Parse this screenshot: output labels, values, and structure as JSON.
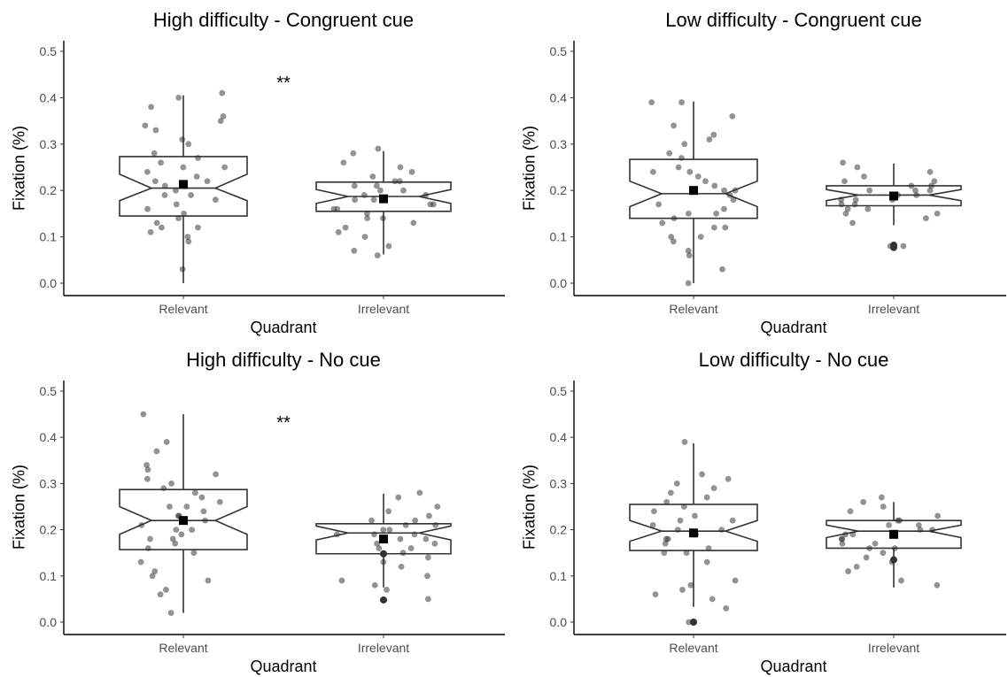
{
  "chart_data": [
    {
      "type": "boxplot",
      "title": "High difficulty - Congruent cue",
      "xlabel": "Quadrant",
      "ylabel": "Fixation (%)",
      "ylim": [
        0,
        0.5
      ],
      "yticks": [
        "0.0",
        "0.1",
        "0.2",
        "0.3",
        "0.4",
        "0.5"
      ],
      "categories": [
        "Relevant",
        "Irrelevant"
      ],
      "annotation": "**",
      "boxes": [
        {
          "category": "Relevant",
          "whisker_low": 0.0,
          "q1": 0.145,
          "median": 0.205,
          "q3": 0.273,
          "whisker_high": 0.405,
          "notch_low": 0.178,
          "notch_high": 0.235,
          "mean": 0.213
        },
        {
          "category": "Irrelevant",
          "whisker_low": 0.062,
          "q1": 0.155,
          "median": 0.187,
          "q3": 0.218,
          "whisker_high": 0.285,
          "notch_low": 0.172,
          "notch_high": 0.202,
          "mean": 0.182
        }
      ],
      "points": [
        [
          0.03,
          0.09,
          0.11,
          0.12,
          0.14,
          0.15,
          0.16,
          0.18,
          0.19,
          0.2,
          0.21,
          0.22,
          0.23,
          0.24,
          0.25,
          0.26,
          0.27,
          0.28,
          0.3,
          0.31,
          0.33,
          0.34,
          0.35,
          0.36,
          0.38,
          0.4,
          0.41,
          0.13,
          0.17,
          0.1,
          0.12,
          0.19,
          0.22,
          0.25
        ],
        [
          0.06,
          0.07,
          0.08,
          0.1,
          0.12,
          0.13,
          0.14,
          0.15,
          0.16,
          0.17,
          0.18,
          0.19,
          0.2,
          0.21,
          0.22,
          0.23,
          0.24,
          0.25,
          0.26,
          0.28,
          0.29,
          0.11,
          0.16,
          0.18,
          0.2,
          0.22,
          0.17,
          0.19,
          0.21,
          0.14
        ]
      ],
      "outliers": [
        [],
        []
      ]
    },
    {
      "type": "boxplot",
      "title": "Low difficulty - Congruent cue",
      "xlabel": "Quadrant",
      "ylabel": "Fixation (%)",
      "ylim": [
        0,
        0.5
      ],
      "yticks": [
        "0.0",
        "0.1",
        "0.2",
        "0.3",
        "0.4",
        "0.5"
      ],
      "categories": [
        "Relevant",
        "Irrelevant"
      ],
      "annotation": "",
      "boxes": [
        {
          "category": "Relevant",
          "whisker_low": 0.0,
          "q1": 0.14,
          "median": 0.193,
          "q3": 0.267,
          "whisker_high": 0.392,
          "notch_low": 0.165,
          "notch_high": 0.22,
          "mean": 0.2
        },
        {
          "category": "Irrelevant",
          "whisker_low": 0.125,
          "q1": 0.167,
          "median": 0.19,
          "q3": 0.21,
          "whisker_high": 0.258,
          "notch_low": 0.178,
          "notch_high": 0.202,
          "mean": 0.188
        }
      ],
      "points": [
        [
          0.0,
          0.03,
          0.06,
          0.07,
          0.09,
          0.1,
          0.12,
          0.13,
          0.14,
          0.15,
          0.16,
          0.18,
          0.19,
          0.2,
          0.21,
          0.22,
          0.23,
          0.24,
          0.25,
          0.27,
          0.28,
          0.3,
          0.31,
          0.32,
          0.34,
          0.36,
          0.39,
          0.39,
          0.1,
          0.15,
          0.17,
          0.2,
          0.24,
          0.12
        ],
        [
          0.08,
          0.08,
          0.13,
          0.14,
          0.15,
          0.16,
          0.17,
          0.18,
          0.19,
          0.2,
          0.21,
          0.22,
          0.23,
          0.24,
          0.25,
          0.26,
          0.16,
          0.18,
          0.19,
          0.2,
          0.21,
          0.17,
          0.19,
          0.22,
          0.2,
          0.18,
          0.15
        ]
      ],
      "outliers": [
        [],
        [
          0.077,
          0.082
        ]
      ]
    },
    {
      "type": "boxplot",
      "title": "High difficulty - No cue",
      "xlabel": "Quadrant",
      "ylabel": "Fixation (%)",
      "ylim": [
        0,
        0.5
      ],
      "yticks": [
        "0.0",
        "0.1",
        "0.2",
        "0.3",
        "0.4",
        "0.5"
      ],
      "categories": [
        "Relevant",
        "Irrelevant"
      ],
      "annotation": "**",
      "boxes": [
        {
          "category": "Relevant",
          "whisker_low": 0.02,
          "q1": 0.157,
          "median": 0.22,
          "q3": 0.287,
          "whisker_high": 0.45,
          "notch_low": 0.19,
          "notch_high": 0.25,
          "mean": 0.22
        },
        {
          "category": "Irrelevant",
          "whisker_low": 0.075,
          "q1": 0.148,
          "median": 0.193,
          "q3": 0.213,
          "whisker_high": 0.278,
          "notch_low": 0.178,
          "notch_high": 0.208,
          "mean": 0.18
        }
      ],
      "points": [
        [
          0.02,
          0.06,
          0.07,
          0.09,
          0.1,
          0.11,
          0.13,
          0.15,
          0.16,
          0.17,
          0.18,
          0.19,
          0.2,
          0.21,
          0.22,
          0.23,
          0.24,
          0.25,
          0.26,
          0.27,
          0.28,
          0.29,
          0.3,
          0.31,
          0.32,
          0.33,
          0.34,
          0.37,
          0.39,
          0.45,
          0.2,
          0.23,
          0.18,
          0.25
        ],
        [
          0.05,
          0.07,
          0.08,
          0.09,
          0.1,
          0.12,
          0.13,
          0.14,
          0.15,
          0.16,
          0.17,
          0.18,
          0.19,
          0.2,
          0.21,
          0.22,
          0.23,
          0.24,
          0.25,
          0.27,
          0.28,
          0.17,
          0.19,
          0.21,
          0.2,
          0.18,
          0.22,
          0.16,
          0.19
        ]
      ],
      "outliers": [
        [],
        [
          0.048,
          0.148
        ]
      ]
    },
    {
      "type": "boxplot",
      "title": "Low difficulty - No cue",
      "xlabel": "Quadrant",
      "ylabel": "Fixation (%)",
      "ylim": [
        0,
        0.5
      ],
      "yticks": [
        "0.0",
        "0.1",
        "0.2",
        "0.3",
        "0.4",
        "0.5"
      ],
      "categories": [
        "Relevant",
        "Irrelevant"
      ],
      "annotation": "",
      "boxes": [
        {
          "category": "Relevant",
          "whisker_low": 0.033,
          "q1": 0.155,
          "median": 0.197,
          "q3": 0.255,
          "whisker_high": 0.387,
          "notch_low": 0.175,
          "notch_high": 0.22,
          "mean": 0.193
        },
        {
          "category": "Irrelevant",
          "whisker_low": 0.075,
          "q1": 0.16,
          "median": 0.197,
          "q3": 0.22,
          "whisker_high": 0.26,
          "notch_low": 0.183,
          "notch_high": 0.21,
          "mean": 0.19
        }
      ],
      "points": [
        [
          0.0,
          0.0,
          0.03,
          0.05,
          0.06,
          0.07,
          0.08,
          0.09,
          0.13,
          0.15,
          0.16,
          0.17,
          0.18,
          0.19,
          0.2,
          0.21,
          0.22,
          0.23,
          0.24,
          0.25,
          0.26,
          0.27,
          0.28,
          0.29,
          0.3,
          0.31,
          0.32,
          0.39,
          0.2,
          0.18,
          0.22,
          0.15
        ],
        [
          0.08,
          0.09,
          0.11,
          0.12,
          0.13,
          0.14,
          0.15,
          0.16,
          0.17,
          0.18,
          0.19,
          0.2,
          0.21,
          0.22,
          0.23,
          0.24,
          0.25,
          0.26,
          0.27,
          0.17,
          0.19,
          0.21,
          0.2,
          0.18,
          0.22,
          0.16
        ]
      ],
      "outliers": [
        [
          0.0
        ],
        [
          0.135
        ]
      ]
    }
  ]
}
